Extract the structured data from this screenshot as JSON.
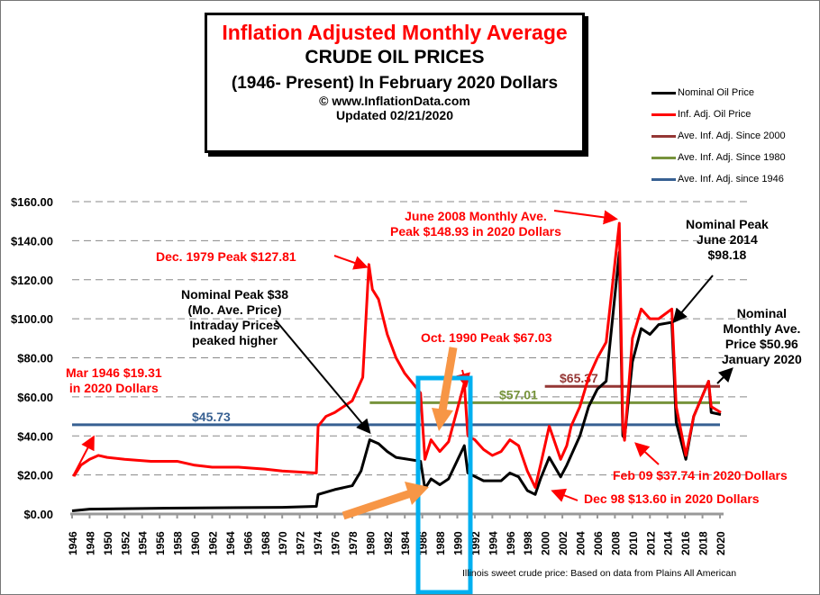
{
  "title": {
    "line1": "Inflation Adjusted Monthly Average",
    "line2": "CRUDE OIL PRICES",
    "line3": "(1946- Present) In February 2020 Dollars",
    "line4": "© www.InflationData.com",
    "line5": "Updated 02/21/2020"
  },
  "source_note": "Illinois sweet crude price: Based on data from Plains All American",
  "annotations": {
    "mar1946": "Mar 1946 $19.31\nin 2020 Dollars",
    "dec1979": "Dec. 1979 Peak $127.81",
    "nominal38": "Nominal Peak $38\n(Mo. Ave. Price)\nIntraday Prices\npeaked higher",
    "oct1990": "Oct. 1990 Peak $67.03",
    "jun2008": "June 2008 Monthly Ave.\nPeak $148.93 in 2020 Dollars",
    "nompeak2014": "Nominal Peak\nJune 2014\n$98.18",
    "jan2020": "Nominal\nMonthly Ave.\nPrice $50.96\nJanuary 2020",
    "feb09": "Feb 09 $37.74 in 2020 Dollars",
    "dec98": "Dec 98 $13.60 in 2020 Dollars"
  },
  "chart_data": {
    "type": "line",
    "title": "Inflation Adjusted Monthly Average CRUDE OIL PRICES",
    "xlim": [
      1946,
      2020
    ],
    "ylim": [
      0,
      160
    ],
    "x_ticks": [
      1946,
      1948,
      1950,
      1952,
      1954,
      1956,
      1958,
      1960,
      1962,
      1964,
      1966,
      1968,
      1970,
      1972,
      1974,
      1976,
      1978,
      1980,
      1982,
      1984,
      1986,
      1988,
      1990,
      1992,
      1994,
      1996,
      1998,
      2000,
      2002,
      2004,
      2006,
      2008,
      2010,
      2012,
      2014,
      2016,
      2018,
      2020
    ],
    "y_ticks": [
      "$0.00",
      "$20.00",
      "$40.00",
      "$60.00",
      "$80.00",
      "$100.00",
      "$120.00",
      "$140.00",
      "$160.00"
    ],
    "legend_position": "top-right",
    "series": [
      {
        "name": "Nominal Oil Price",
        "color": "#000000",
        "points": [
          [
            1946,
            1.6
          ],
          [
            1948,
            2.5
          ],
          [
            1950,
            2.6
          ],
          [
            1957,
            3.0
          ],
          [
            1970,
            3.4
          ],
          [
            1973.9,
            3.9
          ],
          [
            1974.1,
            10
          ],
          [
            1976,
            12.5
          ],
          [
            1978,
            14.5
          ],
          [
            1979,
            22
          ],
          [
            1980,
            38
          ],
          [
            1981,
            36
          ],
          [
            1982,
            32
          ],
          [
            1983,
            29
          ],
          [
            1985.8,
            27
          ],
          [
            1986.3,
            13
          ],
          [
            1987,
            18
          ],
          [
            1988,
            15
          ],
          [
            1989,
            18
          ],
          [
            1990.8,
            35
          ],
          [
            1991.2,
            21
          ],
          [
            1993,
            17
          ],
          [
            1995,
            17
          ],
          [
            1996,
            21
          ],
          [
            1997,
            19
          ],
          [
            1998,
            12
          ],
          [
            1998.9,
            10
          ],
          [
            1999.5,
            18
          ],
          [
            2000.5,
            29
          ],
          [
            2001.8,
            19
          ],
          [
            2002.5,
            25
          ],
          [
            2003,
            30
          ],
          [
            2004,
            40
          ],
          [
            2005,
            55
          ],
          [
            2006,
            64
          ],
          [
            2007,
            68
          ],
          [
            2008.5,
            134
          ],
          [
            2008.9,
            40
          ],
          [
            2009.1,
            39
          ],
          [
            2010,
            78
          ],
          [
            2011,
            95
          ],
          [
            2012,
            92
          ],
          [
            2013,
            97
          ],
          [
            2014.5,
            98.18
          ],
          [
            2015,
            47
          ],
          [
            2016.1,
            28
          ],
          [
            2017,
            50
          ],
          [
            2018.7,
            68
          ],
          [
            2019,
            52
          ],
          [
            2020.1,
            50.96
          ]
        ]
      },
      {
        "name": "Inf. Adj. Oil Price",
        "color": "#ff0000",
        "points": [
          [
            1946.2,
            19.31
          ],
          [
            1947,
            25
          ],
          [
            1948,
            28
          ],
          [
            1949,
            30
          ],
          [
            1950,
            29
          ],
          [
            1952,
            28
          ],
          [
            1955,
            27
          ],
          [
            1958,
            27
          ],
          [
            1960,
            25
          ],
          [
            1962,
            24
          ],
          [
            1965,
            24
          ],
          [
            1968,
            23
          ],
          [
            1970,
            22
          ],
          [
            1973.9,
            21
          ],
          [
            1974.1,
            45
          ],
          [
            1975,
            50
          ],
          [
            1976,
            52
          ],
          [
            1977,
            55
          ],
          [
            1978,
            58
          ],
          [
            1979.2,
            70
          ],
          [
            1979.9,
            127.81
          ],
          [
            1980.3,
            115
          ],
          [
            1981,
            110
          ],
          [
            1982,
            92
          ],
          [
            1983,
            80
          ],
          [
            1984,
            72
          ],
          [
            1985.8,
            62
          ],
          [
            1986.3,
            28
          ],
          [
            1987,
            38
          ],
          [
            1988,
            32
          ],
          [
            1989,
            37
          ],
          [
            1990.8,
            67.03
          ],
          [
            1991.2,
            40
          ],
          [
            1992,
            38
          ],
          [
            1993,
            33
          ],
          [
            1994,
            30
          ],
          [
            1995,
            32
          ],
          [
            1996,
            38
          ],
          [
            1997,
            35
          ],
          [
            1998,
            22
          ],
          [
            1998.9,
            13.6
          ],
          [
            1999.5,
            25
          ],
          [
            2000.5,
            45
          ],
          [
            2001.8,
            28
          ],
          [
            2002.5,
            35
          ],
          [
            2003,
            45
          ],
          [
            2004,
            55
          ],
          [
            2005,
            70
          ],
          [
            2006,
            80
          ],
          [
            2007,
            88
          ],
          [
            2008.5,
            148.93
          ],
          [
            2008.9,
            45
          ],
          [
            2009.1,
            37.74
          ],
          [
            2010,
            90
          ],
          [
            2011,
            105
          ],
          [
            2012,
            100
          ],
          [
            2013,
            100
          ],
          [
            2014.5,
            105
          ],
          [
            2015,
            55
          ],
          [
            2016.1,
            30
          ],
          [
            2017,
            50
          ],
          [
            2018.7,
            68
          ],
          [
            2019,
            55
          ],
          [
            2020.1,
            52
          ]
        ]
      },
      {
        "name": "Ave. Inf. Adj. Since 2000",
        "color": "#953735",
        "value": 65.37,
        "from": 2000,
        "label": "$65.37"
      },
      {
        "name": "Ave. Inf. Adj. Since 1980",
        "color": "#77933c",
        "value": 57.01,
        "from": 1980,
        "label": "$57.01"
      },
      {
        "name": "Ave. Inf. Adj. since 1946",
        "color": "#376092",
        "value": 45.73,
        "from": 1946,
        "label": "$45.73"
      }
    ]
  }
}
